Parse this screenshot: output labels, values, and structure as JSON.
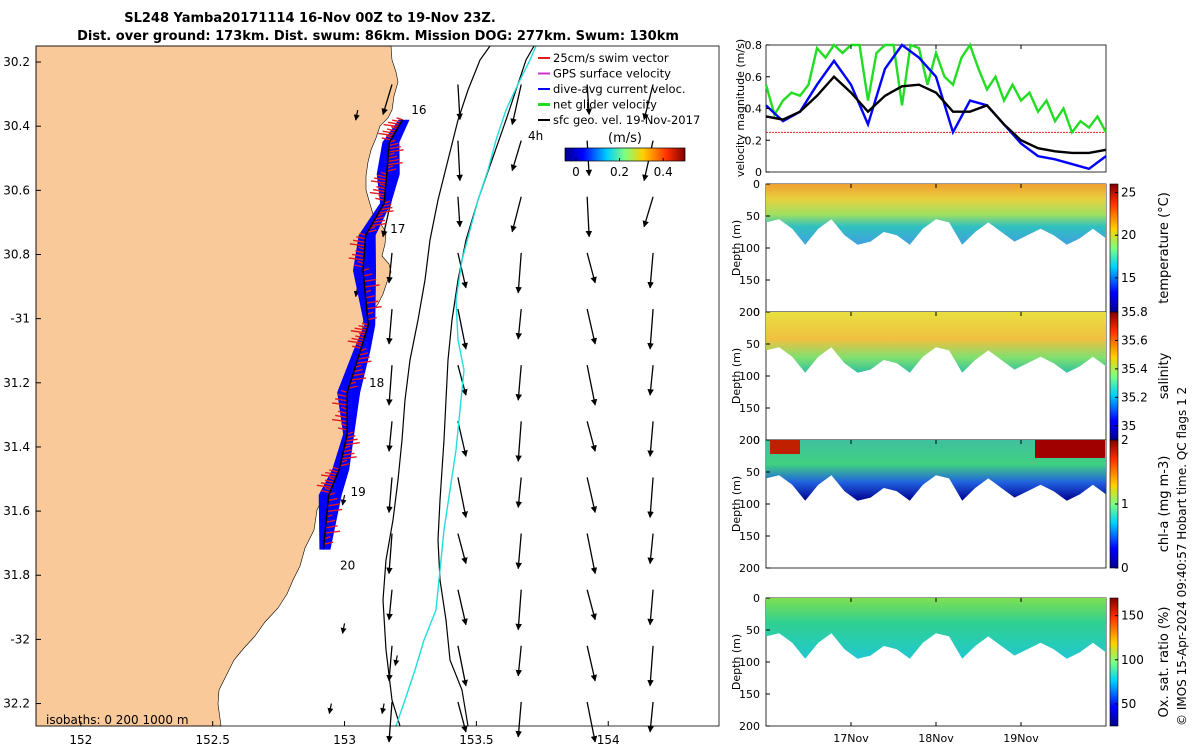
{
  "title": {
    "line1": "SL248 Yamba20171114 16-Nov 00Z to 19-Nov 23Z.",
    "line2": "Dist. over ground: 173km. Dist. swum: 86km. Mission DOG: 277km. Swum: 130km"
  },
  "colors": {
    "land": "#F9C99A",
    "swim_vector": "#E41A1C",
    "gps_velocity": "#CC33CC",
    "dive_avg": "#0000FF",
    "net_glider": "#22DD22",
    "geo_vel": "#000000",
    "isobath_200": "#22DDDD"
  },
  "map": {
    "lon_ticks": [
      "152",
      "152.5",
      "153",
      "153.5",
      "154"
    ],
    "lat_ticks": [
      "30.2",
      "30.4",
      "30.6",
      "30.8",
      "-31",
      "31.2",
      "31.4",
      "31.6",
      "31.8",
      "-32",
      "32.2"
    ],
    "xlim": [
      151.83,
      154.42
    ],
    "ylim": [
      -32.27,
      -30.15
    ],
    "day_labels": [
      {
        "text": "16",
        "lon": 153.23,
        "lat": -30.35
      },
      {
        "text": "17",
        "lon": 153.15,
        "lat": -30.72
      },
      {
        "text": "18",
        "lon": 153.07,
        "lat": -31.2
      },
      {
        "text": "19",
        "lon": 153.0,
        "lat": -31.54
      },
      {
        "text": "20",
        "lon": 152.96,
        "lat": -31.77
      }
    ],
    "time_marker": "4h",
    "isobaths_label": "isobaths: 0   200   1000 m",
    "legend": [
      {
        "label": "25cm/s swim vector",
        "color_key": "swim_vector"
      },
      {
        "label": "GPS surface velocity",
        "color_key": "gps_velocity"
      },
      {
        "label": "dive-avg current veloc.",
        "color_key": "dive_avg"
      },
      {
        "label": "net glider velocity",
        "color_key": "net_glider"
      },
      {
        "label": "sfc geo. vel. 19-Nov-2017",
        "color_key": "geo_vel"
      }
    ],
    "colorbar_unit": "(m/s)",
    "colorbar_ticks": [
      "0",
      "0.2",
      "0.4"
    ],
    "glider_track": [
      [
        153.22,
        -30.38
      ],
      [
        153.17,
        -30.45
      ],
      [
        153.16,
        -30.55
      ],
      [
        153.15,
        -30.64
      ],
      [
        153.08,
        -30.74
      ],
      [
        153.07,
        -30.85
      ],
      [
        153.09,
        -31.02
      ],
      [
        153.06,
        -31.1
      ],
      [
        153.01,
        -31.23
      ],
      [
        153.01,
        -31.36
      ],
      [
        152.98,
        -31.47
      ],
      [
        152.94,
        -31.55
      ],
      [
        152.92,
        -31.72
      ]
    ]
  },
  "chart_data": [
    {
      "type": "line",
      "ylabel": "velocity magnitude (m/s)",
      "ylim": [
        0,
        0.8
      ],
      "yticks": [
        "0",
        "0.2",
        "0.4",
        "0.6",
        "0.8"
      ],
      "x_ticks": [
        "17Nov",
        "18Nov",
        "19Nov"
      ],
      "x_start_day": 16.0,
      "x_end_day": 20.0,
      "series": [
        {
          "color_key": "net_glider",
          "x": [
            16.0,
            16.1,
            16.2,
            16.3,
            16.4,
            16.5,
            16.6,
            16.7,
            16.8,
            16.9,
            17.0,
            17.1,
            17.2,
            17.3,
            17.4,
            17.5,
            17.6,
            17.7,
            17.8,
            17.9,
            18.0,
            18.1,
            18.2,
            18.3,
            18.4,
            18.5,
            18.6,
            18.7,
            18.8,
            18.9,
            19.0,
            19.1,
            19.2,
            19.3,
            19.4,
            19.5,
            19.6,
            19.7,
            19.8,
            19.9,
            20.0
          ],
          "y": [
            0.55,
            0.36,
            0.45,
            0.5,
            0.48,
            0.55,
            0.78,
            0.72,
            0.8,
            0.75,
            0.8,
            0.8,
            0.45,
            0.75,
            0.8,
            0.8,
            0.42,
            0.8,
            0.78,
            0.55,
            0.75,
            0.6,
            0.55,
            0.72,
            0.8,
            0.65,
            0.52,
            0.6,
            0.45,
            0.55,
            0.45,
            0.5,
            0.38,
            0.45,
            0.32,
            0.4,
            0.25,
            0.32,
            0.28,
            0.35,
            0.25
          ]
        },
        {
          "color_key": "dive_avg",
          "x": [
            16.0,
            16.2,
            16.4,
            16.6,
            16.8,
            17.0,
            17.2,
            17.4,
            17.6,
            17.8,
            18.0,
            18.2,
            18.4,
            18.6,
            18.8,
            19.0,
            19.2,
            19.4,
            19.6,
            19.8,
            20.0
          ],
          "y": [
            0.42,
            0.32,
            0.38,
            0.55,
            0.7,
            0.55,
            0.3,
            0.65,
            0.8,
            0.72,
            0.6,
            0.25,
            0.45,
            0.42,
            0.3,
            0.18,
            0.1,
            0.08,
            0.05,
            0.02,
            0.1
          ]
        },
        {
          "color_key": "geo_vel",
          "x": [
            16.0,
            16.2,
            16.4,
            16.6,
            16.8,
            17.0,
            17.2,
            17.4,
            17.6,
            17.8,
            18.0,
            18.2,
            18.4,
            18.6,
            18.8,
            19.0,
            19.2,
            19.4,
            19.6,
            19.8,
            20.0
          ],
          "y": [
            0.35,
            0.33,
            0.38,
            0.48,
            0.6,
            0.5,
            0.38,
            0.48,
            0.54,
            0.55,
            0.5,
            0.38,
            0.38,
            0.42,
            0.3,
            0.2,
            0.15,
            0.13,
            0.12,
            0.12,
            0.14
          ]
        }
      ],
      "reference_line": {
        "y": 0.25,
        "color_key": "swim_vector"
      }
    },
    {
      "type": "heatmap",
      "variable": "temperature",
      "ylabel": "Depth (m)",
      "yticks": [
        "0",
        "50",
        "100",
        "150",
        "200"
      ],
      "colorbar_label": "temperature (°C)",
      "colorbar_ticks": [
        "25",
        "20",
        "15"
      ],
      "value_range": [
        11,
        26
      ],
      "max_depth_profile": [
        60,
        55,
        70,
        95,
        70,
        55,
        80,
        95,
        90,
        75,
        80,
        95,
        70,
        55,
        60,
        95,
        75,
        60,
        75,
        90,
        80,
        70,
        80,
        95,
        85,
        70,
        85
      ]
    },
    {
      "type": "heatmap",
      "variable": "salinity",
      "ylabel": "Depth (m)",
      "yticks": [
        "0",
        "50",
        "100",
        "150",
        "200"
      ],
      "colorbar_label": "salinity",
      "colorbar_ticks": [
        "35.8",
        "35.6",
        "35.4",
        "35.2",
        "35"
      ],
      "value_range": [
        34.9,
        35.8
      ]
    },
    {
      "type": "heatmap",
      "variable": "chl-a",
      "ylabel": "Depth (m)",
      "yticks": [
        "0",
        "50",
        "100",
        "150",
        "200"
      ],
      "colorbar_label": "chl-a (mg m-3)",
      "colorbar_ticks": [
        "2",
        "1",
        "0"
      ],
      "value_range": [
        0,
        2
      ]
    },
    {
      "type": "heatmap",
      "variable": "oxygen saturation",
      "ylabel": "Depth (m)",
      "yticks": [
        "0",
        "50",
        "100",
        "150",
        "200"
      ],
      "colorbar_label": "Ox. sat. ratio (%)",
      "colorbar_ticks": [
        "150",
        "100",
        "50"
      ],
      "value_range": [
        25,
        170
      ]
    }
  ],
  "footer_note": "© IMOS 15-Apr-2024 09:40:57 Hobart time. QC flags 1  2"
}
